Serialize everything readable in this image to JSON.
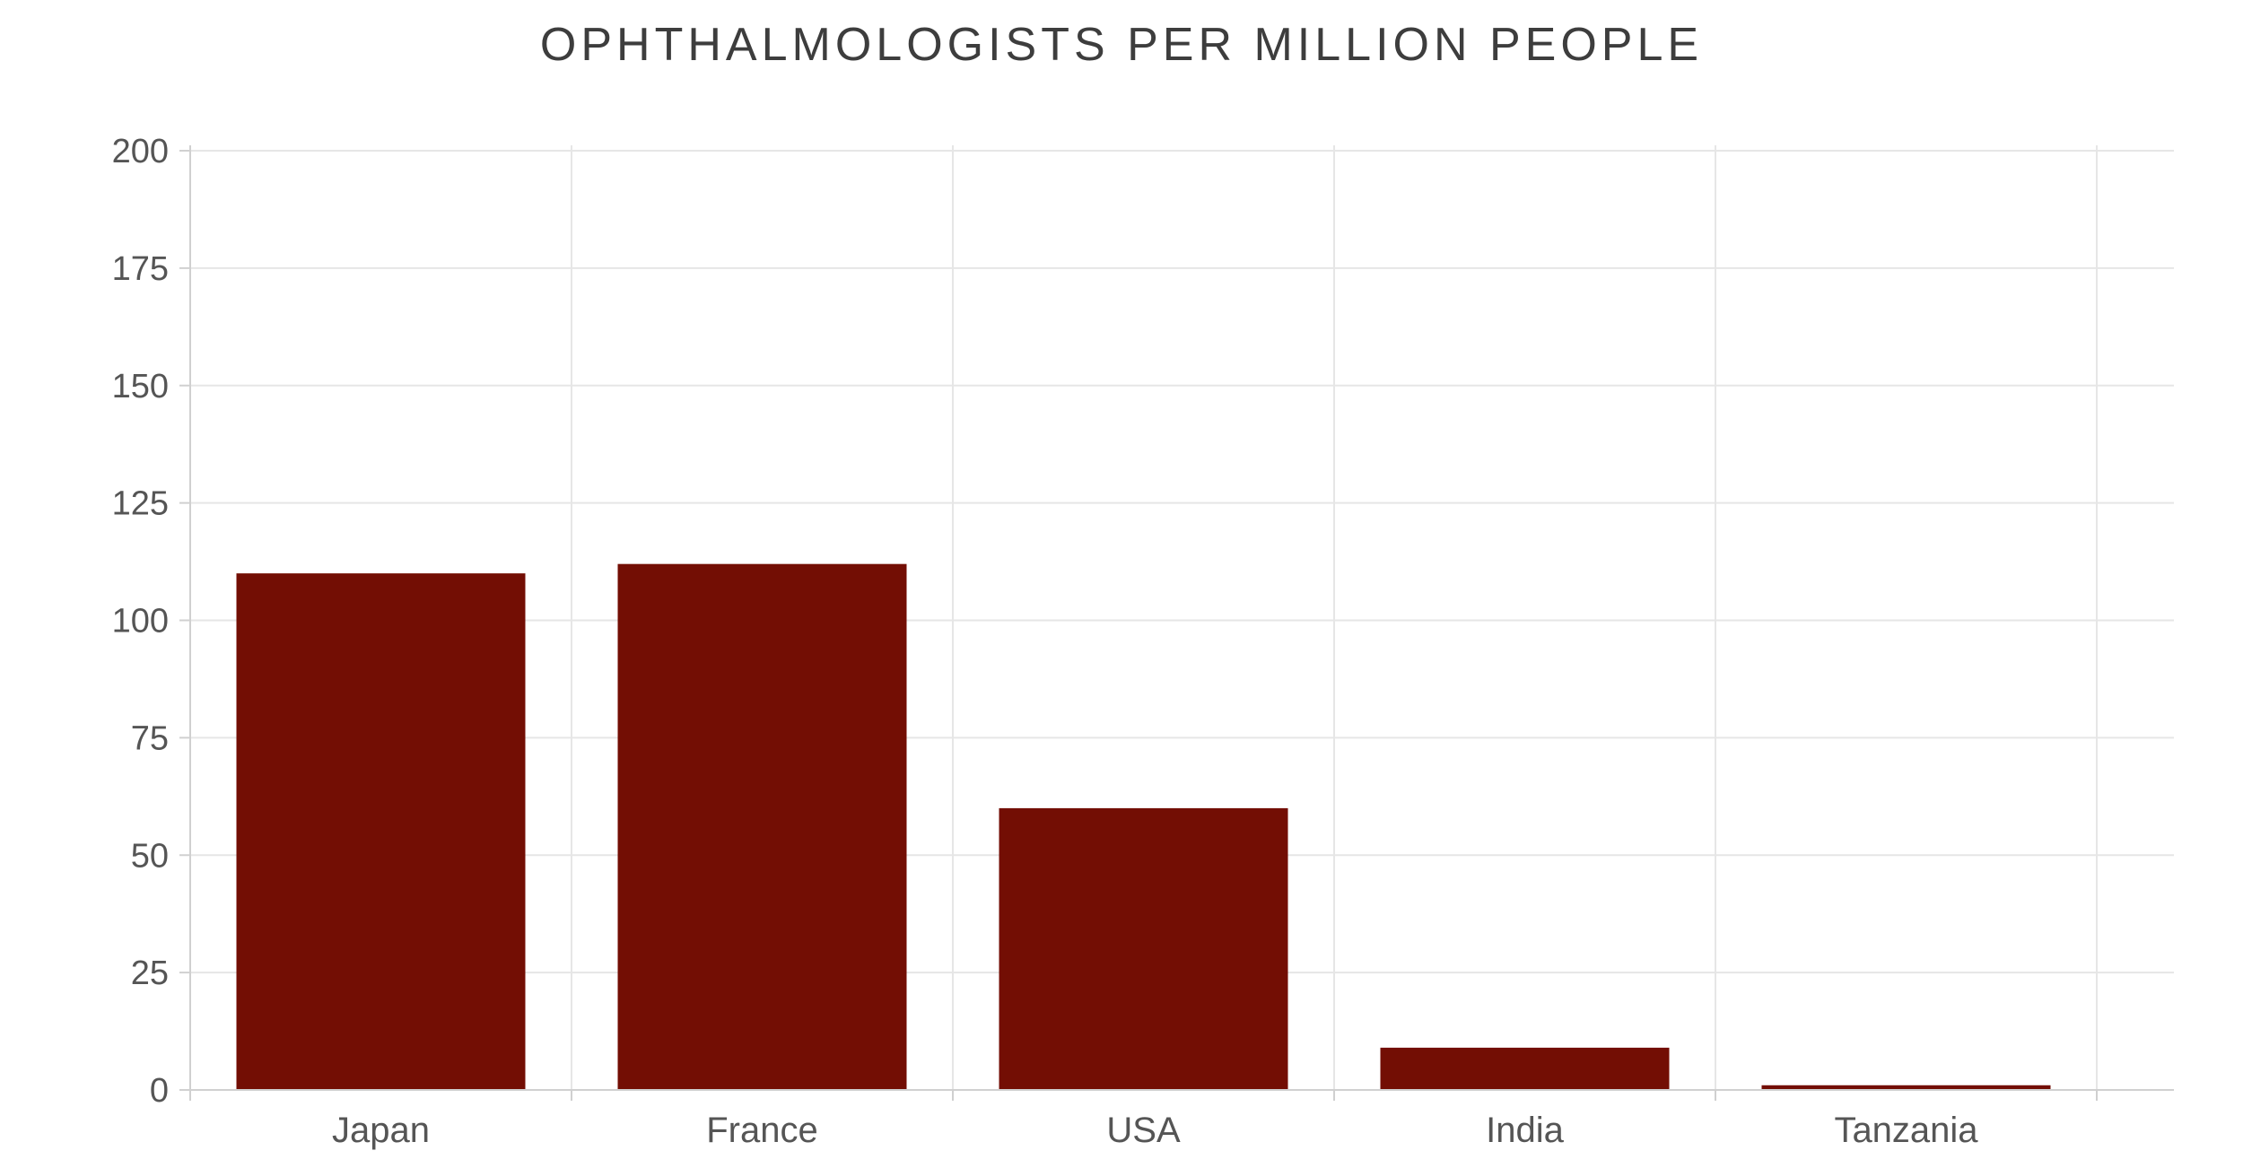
{
  "chart_data": {
    "type": "bar",
    "title": "OPHTHALMOLOGISTS PER MILLION PEOPLE",
    "categories": [
      "Japan",
      "France",
      "USA",
      "India",
      "Tanzania"
    ],
    "values": [
      110,
      112,
      60,
      9,
      1
    ],
    "xlabel": "",
    "ylabel": "",
    "ylim": [
      0,
      200
    ],
    "yticks": [
      "0",
      "25",
      "50",
      "75",
      "100",
      "125",
      "150",
      "175",
      "200"
    ],
    "grid": true,
    "legend": "none",
    "colors": {
      "bar": "#730e04",
      "grid": "#e6e6e6",
      "axis": "#d0d0d0",
      "text": "#555555"
    }
  }
}
